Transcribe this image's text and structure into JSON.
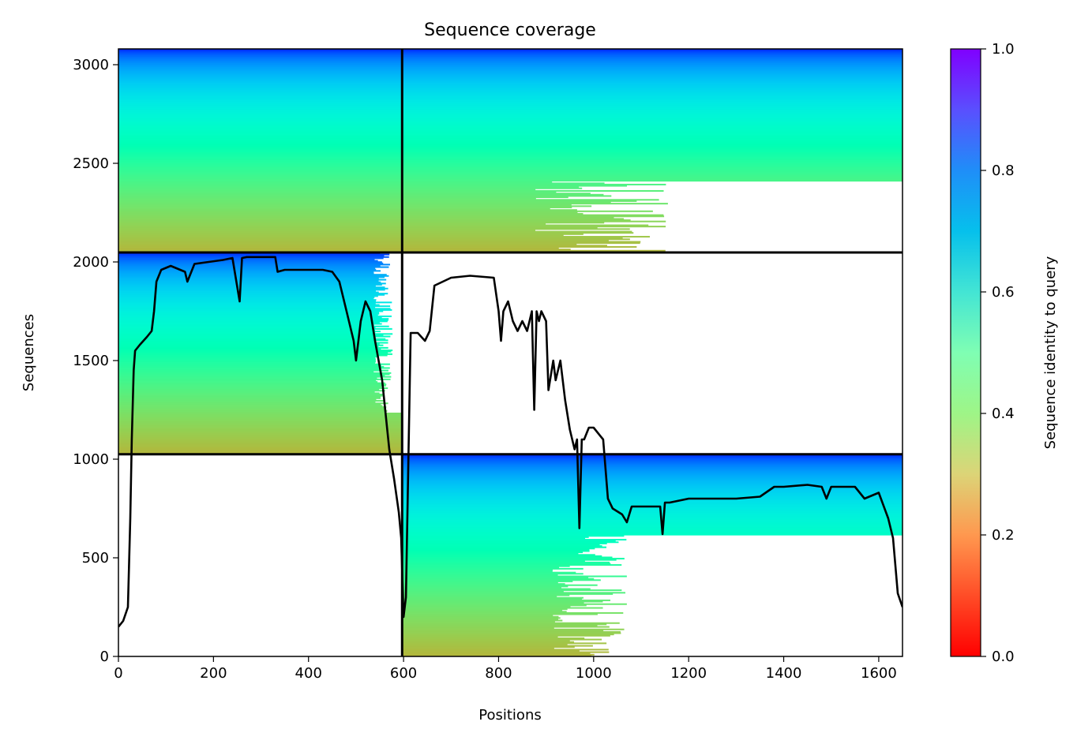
{
  "chart_data": {
    "type": "heatmap",
    "title": "Sequence coverage",
    "xlabel": "Positions",
    "ylabel": "Sequences",
    "xlim": [
      0,
      1650
    ],
    "ylim": [
      0,
      3080
    ],
    "x_ticks": [
      0,
      200,
      400,
      600,
      800,
      1000,
      1200,
      1400,
      1600
    ],
    "y_ticks": [
      0,
      500,
      1000,
      1500,
      2000,
      2500,
      3000
    ],
    "grid": false,
    "colorbar": {
      "label": "Sequence identity to query",
      "range": [
        0.0,
        1.0
      ],
      "ticks": [
        "0.0",
        "0.2",
        "0.4",
        "0.6",
        "0.8",
        "1.0"
      ],
      "colormap": "rainbow_r"
    },
    "chain_boundaries": {
      "x": [
        597
      ],
      "y": [
        1025,
        2048
      ]
    },
    "blocks": [
      {
        "x_range": [
          0,
          597
        ],
        "y_range": [
          2048,
          3080
        ]
      },
      {
        "x_range": [
          597,
          1650
        ],
        "y_range": [
          2048,
          3080
        ]
      },
      {
        "x_range": [
          0,
          597
        ],
        "y_range": [
          1025,
          2048
        ]
      },
      {
        "x_range": [
          597,
          1650
        ],
        "y_range": [
          0,
          1025
        ]
      }
    ],
    "coverage_line": {
      "name": "coverage",
      "x": [
        0,
        10,
        20,
        25,
        28,
        32,
        35,
        45,
        60,
        70,
        75,
        80,
        90,
        110,
        140,
        145,
        160,
        190,
        220,
        240,
        255,
        260,
        270,
        300,
        330,
        335,
        350,
        400,
        430,
        450,
        465,
        480,
        495,
        500,
        510,
        520,
        530,
        540,
        555,
        570,
        580,
        590,
        595,
        600,
        605,
        615,
        630,
        645,
        655,
        665,
        700,
        740,
        790,
        800,
        805,
        810,
        820,
        830,
        840,
        850,
        860,
        870,
        875,
        880,
        885,
        890,
        900,
        905,
        915,
        920,
        930,
        940,
        950,
        960,
        965,
        970,
        975,
        980,
        990,
        1000,
        1020,
        1030,
        1040,
        1060,
        1070,
        1080,
        1100,
        1140,
        1145,
        1150,
        1160,
        1200,
        1250,
        1300,
        1350,
        1380,
        1400,
        1450,
        1480,
        1490,
        1500,
        1550,
        1570,
        1600,
        1620,
        1630,
        1640,
        1650
      ],
      "y": [
        150,
        180,
        250,
        700,
        1100,
        1450,
        1550,
        1580,
        1620,
        1650,
        1750,
        1900,
        1960,
        1980,
        1950,
        1900,
        1990,
        2000,
        2010,
        2020,
        1800,
        2020,
        2025,
        2025,
        2025,
        1950,
        1960,
        1960,
        1960,
        1950,
        1900,
        1750,
        1600,
        1500,
        1700,
        1800,
        1750,
        1600,
        1400,
        1050,
        900,
        730,
        600,
        200,
        300,
        1640,
        1640,
        1600,
        1650,
        1880,
        1920,
        1930,
        1920,
        1750,
        1600,
        1750,
        1800,
        1700,
        1650,
        1700,
        1650,
        1750,
        1250,
        1750,
        1700,
        1750,
        1700,
        1350,
        1500,
        1400,
        1500,
        1300,
        1150,
        1050,
        1100,
        650,
        1100,
        1100,
        1160,
        1160,
        1100,
        800,
        750,
        720,
        680,
        760,
        760,
        760,
        620,
        780,
        780,
        800,
        800,
        800,
        810,
        860,
        860,
        870,
        860,
        800,
        860,
        860,
        800,
        830,
        700,
        600,
        320,
        250
      ]
    }
  }
}
